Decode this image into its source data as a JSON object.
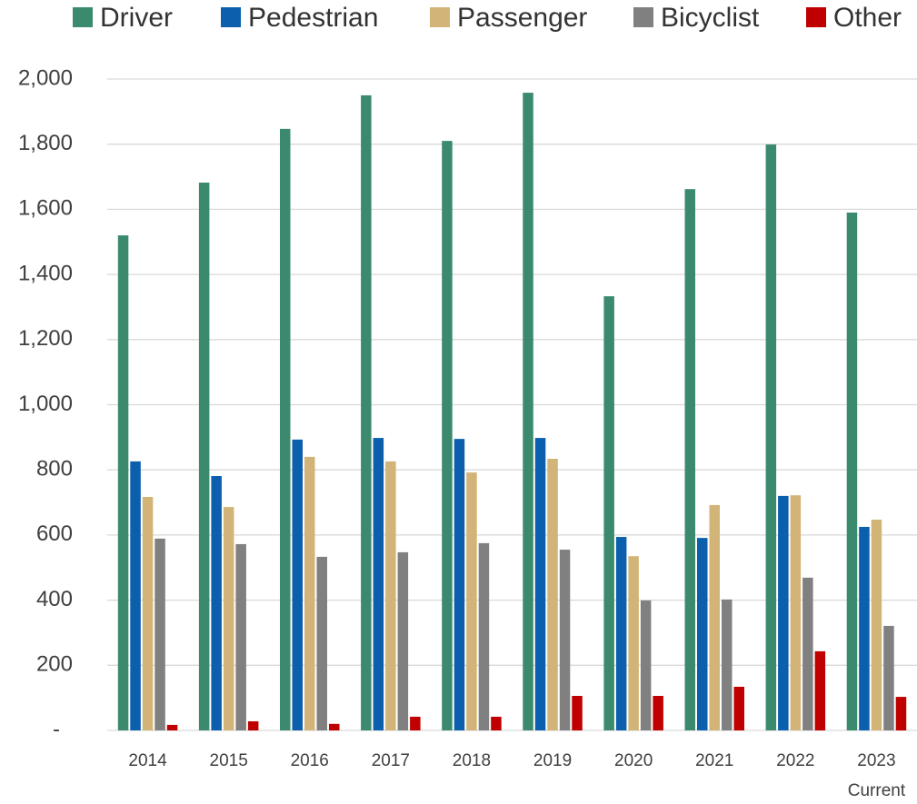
{
  "chart_data": {
    "type": "bar",
    "categories": [
      "2014",
      "2015",
      "2016",
      "2017",
      "2018",
      "2019",
      "2020",
      "2021",
      "2022",
      "2023"
    ],
    "annotations": [
      "Current"
    ],
    "series": [
      {
        "name": "Driver",
        "color": "#3c8a6e",
        "values": [
          1520,
          1682,
          1847,
          1950,
          1810,
          1958,
          1333,
          1662,
          1799,
          1590
        ]
      },
      {
        "name": "Pedestrian",
        "color": "#0b5fad",
        "values": [
          826,
          781,
          893,
          898,
          895,
          898,
          594,
          591,
          720,
          625
        ]
      },
      {
        "name": "Passenger",
        "color": "#d2b478",
        "values": [
          717,
          686,
          840,
          826,
          792,
          834,
          535,
          692,
          722,
          647
        ]
      },
      {
        "name": "Bicyclist",
        "color": "#808080",
        "values": [
          589,
          572,
          533,
          547,
          575,
          555,
          399,
          402,
          469,
          321
        ]
      },
      {
        "name": "Other",
        "color": "#c00000",
        "values": [
          17,
          28,
          20,
          42,
          42,
          106,
          106,
          134,
          243,
          103
        ]
      }
    ],
    "ylim": [
      0,
      2000
    ],
    "yticks": [
      {
        "value": 0,
        "label": "-"
      },
      200,
      400,
      600,
      800,
      {
        "value": 1000,
        "label": "1,000"
      },
      {
        "value": 1200,
        "label": "1,200"
      },
      {
        "value": 1400,
        "label": "1,400"
      },
      {
        "value": 1600,
        "label": "1,600"
      },
      {
        "value": 1800,
        "label": "1,800"
      },
      {
        "value": 2000,
        "label": "2,000"
      }
    ],
    "grid": true,
    "legend": "top"
  }
}
